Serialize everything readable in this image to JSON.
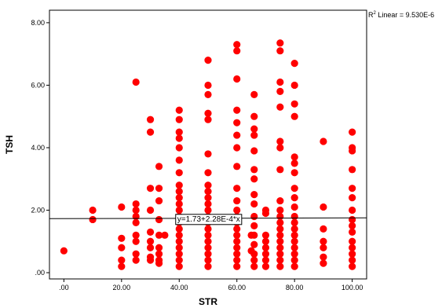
{
  "chart_data": {
    "type": "scatter",
    "title": "",
    "xlabel": "STR",
    "ylabel": "TSH",
    "xlim": [
      -5,
      105
    ],
    "ylim": [
      -0.2,
      8.4
    ],
    "xticks": [
      0,
      20,
      40,
      60,
      80,
      100
    ],
    "xtick_labels": [
      ".00",
      "20.00",
      "40.00",
      "60.00",
      "80.00",
      "100.00"
    ],
    "yticks": [
      0,
      2,
      4,
      6,
      8
    ],
    "ytick_labels": [
      ".00",
      "2.00",
      "4.00",
      "6.00",
      "8.00"
    ],
    "grid": false,
    "legend": "none",
    "point_color": "#ff0000",
    "fit_line": {
      "intercept": 1.73,
      "slope": 0.000228,
      "equation_label": "y=1.73+2.28E-4*x"
    },
    "r2_label_main": "R",
    "r2_label_sup": "2",
    "r2_label_rest": " Linear = 9.530E-6",
    "points": [
      [
        0,
        0.7
      ],
      [
        10,
        2.0
      ],
      [
        10,
        1.7
      ],
      [
        20,
        2.1
      ],
      [
        20,
        1.1
      ],
      [
        20,
        0.8
      ],
      [
        20,
        0.4
      ],
      [
        20,
        0.2
      ],
      [
        25,
        6.1
      ],
      [
        25,
        2.2
      ],
      [
        25,
        2.0
      ],
      [
        25,
        1.8
      ],
      [
        25,
        1.6
      ],
      [
        25,
        1.2
      ],
      [
        25,
        1.0
      ],
      [
        25,
        0.6
      ],
      [
        25,
        0.4
      ],
      [
        30,
        4.9
      ],
      [
        30,
        4.5
      ],
      [
        30,
        2.7
      ],
      [
        30,
        2.0
      ],
      [
        30,
        1.3
      ],
      [
        30,
        1.0
      ],
      [
        30,
        0.8
      ],
      [
        30,
        0.5
      ],
      [
        30,
        0.4
      ],
      [
        33,
        3.4
      ],
      [
        33,
        2.7
      ],
      [
        33,
        2.3
      ],
      [
        33,
        1.7
      ],
      [
        33,
        1.2
      ],
      [
        33,
        0.8
      ],
      [
        33,
        0.6
      ],
      [
        33,
        0.4
      ],
      [
        33,
        0.3
      ],
      [
        35,
        1.2
      ],
      [
        40,
        5.2
      ],
      [
        40,
        4.9
      ],
      [
        40,
        4.5
      ],
      [
        40,
        4.3
      ],
      [
        40,
        4.0
      ],
      [
        40,
        3.6
      ],
      [
        40,
        3.2
      ],
      [
        40,
        2.8
      ],
      [
        40,
        2.6
      ],
      [
        40,
        2.4
      ],
      [
        40,
        2.2
      ],
      [
        40,
        2.0
      ],
      [
        40,
        1.8
      ],
      [
        40,
        1.6
      ],
      [
        40,
        1.4
      ],
      [
        40,
        1.2
      ],
      [
        40,
        1.0
      ],
      [
        40,
        0.8
      ],
      [
        40,
        0.6
      ],
      [
        40,
        0.4
      ],
      [
        40,
        0.2
      ],
      [
        50,
        6.8
      ],
      [
        50,
        6.0
      ],
      [
        50,
        5.7
      ],
      [
        50,
        5.1
      ],
      [
        50,
        4.9
      ],
      [
        50,
        3.8
      ],
      [
        50,
        3.2
      ],
      [
        50,
        2.8
      ],
      [
        50,
        2.6
      ],
      [
        50,
        2.4
      ],
      [
        50,
        2.2
      ],
      [
        50,
        2.0
      ],
      [
        50,
        1.8
      ],
      [
        50,
        1.6
      ],
      [
        50,
        1.4
      ],
      [
        50,
        1.2
      ],
      [
        50,
        1.0
      ],
      [
        50,
        0.8
      ],
      [
        50,
        0.6
      ],
      [
        50,
        0.4
      ],
      [
        50,
        0.2
      ],
      [
        60,
        7.3
      ],
      [
        60,
        7.1
      ],
      [
        60,
        6.2
      ],
      [
        60,
        5.2
      ],
      [
        60,
        4.8
      ],
      [
        60,
        4.4
      ],
      [
        60,
        4.0
      ],
      [
        60,
        3.4
      ],
      [
        60,
        2.7
      ],
      [
        60,
        2.3
      ],
      [
        60,
        2.0
      ],
      [
        60,
        1.8
      ],
      [
        60,
        1.6
      ],
      [
        60,
        1.4
      ],
      [
        60,
        1.2
      ],
      [
        60,
        1.0
      ],
      [
        60,
        0.8
      ],
      [
        60,
        0.6
      ],
      [
        60,
        0.4
      ],
      [
        60,
        0.2
      ],
      [
        65,
        1.2
      ],
      [
        65,
        0.7
      ],
      [
        66,
        5.7
      ],
      [
        66,
        5.0
      ],
      [
        66,
        4.6
      ],
      [
        66,
        4.4
      ],
      [
        66,
        3.9
      ],
      [
        66,
        3.3
      ],
      [
        66,
        3.0
      ],
      [
        66,
        2.5
      ],
      [
        66,
        2.2
      ],
      [
        66,
        1.8
      ],
      [
        66,
        1.5
      ],
      [
        66,
        1.2
      ],
      [
        66,
        0.9
      ],
      [
        66,
        0.6
      ],
      [
        66,
        0.4
      ],
      [
        66,
        0.2
      ],
      [
        70,
        2.0
      ],
      [
        70,
        1.9
      ],
      [
        70,
        1.2
      ],
      [
        70,
        1.0
      ],
      [
        70,
        0.8
      ],
      [
        70,
        0.6
      ],
      [
        70,
        0.4
      ],
      [
        70,
        0.2
      ],
      [
        75,
        7.35
      ],
      [
        75,
        7.1
      ],
      [
        75,
        6.1
      ],
      [
        75,
        5.8
      ],
      [
        75,
        5.3
      ],
      [
        75,
        4.2
      ],
      [
        75,
        4.0
      ],
      [
        75,
        3.3
      ],
      [
        75,
        2.3
      ],
      [
        75,
        2.0
      ],
      [
        75,
        1.8
      ],
      [
        75,
        1.6
      ],
      [
        75,
        1.4
      ],
      [
        75,
        1.2
      ],
      [
        75,
        1.0
      ],
      [
        75,
        0.8
      ],
      [
        75,
        0.6
      ],
      [
        75,
        0.4
      ],
      [
        75,
        0.2
      ],
      [
        80,
        6.7
      ],
      [
        80,
        6.0
      ],
      [
        80,
        5.4
      ],
      [
        80,
        5.0
      ],
      [
        80,
        3.7
      ],
      [
        80,
        3.5
      ],
      [
        80,
        3.2
      ],
      [
        80,
        2.7
      ],
      [
        80,
        2.4
      ],
      [
        80,
        2.1
      ],
      [
        80,
        1.8
      ],
      [
        80,
        1.6
      ],
      [
        80,
        1.4
      ],
      [
        80,
        1.2
      ],
      [
        80,
        1.0
      ],
      [
        80,
        0.8
      ],
      [
        80,
        0.6
      ],
      [
        80,
        0.4
      ],
      [
        80,
        0.2
      ],
      [
        90,
        4.2
      ],
      [
        90,
        2.1
      ],
      [
        90,
        1.4
      ],
      [
        90,
        1.0
      ],
      [
        90,
        0.8
      ],
      [
        90,
        0.5
      ],
      [
        90,
        0.3
      ],
      [
        100,
        4.5
      ],
      [
        100,
        4.0
      ],
      [
        100,
        3.9
      ],
      [
        100,
        3.3
      ],
      [
        100,
        2.7
      ],
      [
        100,
        2.4
      ],
      [
        100,
        2.0
      ],
      [
        100,
        1.7
      ],
      [
        100,
        1.5
      ],
      [
        100,
        1.3
      ],
      [
        100,
        1.0
      ],
      [
        100,
        0.8
      ],
      [
        100,
        0.6
      ],
      [
        100,
        0.4
      ],
      [
        100,
        0.2
      ]
    ]
  }
}
